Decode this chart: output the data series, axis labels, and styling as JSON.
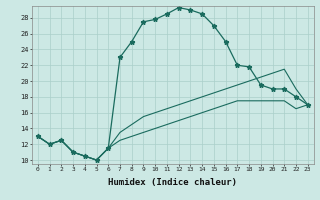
{
  "xlabel": "Humidex (Indice chaleur)",
  "bg_color": "#cce8e4",
  "line_color": "#1a6b5e",
  "grid_color": "#aacfca",
  "xlim": [
    -0.5,
    23.5
  ],
  "ylim": [
    9.5,
    29.5
  ],
  "xticks": [
    0,
    1,
    2,
    3,
    4,
    5,
    6,
    7,
    8,
    9,
    10,
    11,
    12,
    13,
    14,
    15,
    16,
    17,
    18,
    19,
    20,
    21,
    22,
    23
  ],
  "yticks": [
    10,
    12,
    14,
    16,
    18,
    20,
    22,
    24,
    26,
    28
  ],
  "line1_x": [
    0,
    1,
    2,
    3,
    4,
    5,
    6,
    7,
    8,
    9,
    10,
    11,
    12,
    13,
    14,
    15,
    16,
    17,
    18,
    19,
    20,
    21,
    22,
    23
  ],
  "line1_y": [
    13,
    12,
    12.5,
    11,
    10.5,
    10,
    11.5,
    23,
    25,
    27.5,
    27.8,
    28.5,
    29.3,
    29,
    28.5,
    27,
    25,
    22,
    21.8,
    19.5,
    19,
    19,
    18,
    17
  ],
  "line2_x": [
    0,
    1,
    2,
    3,
    4,
    5,
    6,
    7,
    8,
    9,
    10,
    11,
    12,
    13,
    14,
    15,
    16,
    17,
    18,
    19,
    20,
    21,
    22,
    23
  ],
  "line2_y": [
    13,
    12,
    12.5,
    11,
    10.5,
    10,
    11.5,
    13.5,
    14.5,
    15.5,
    16,
    16.5,
    17,
    17.5,
    18,
    18.5,
    19,
    19.5,
    20,
    20.5,
    21,
    21.5,
    19,
    17
  ],
  "line3_x": [
    0,
    1,
    2,
    3,
    4,
    5,
    6,
    7,
    8,
    9,
    10,
    11,
    12,
    13,
    14,
    15,
    16,
    17,
    18,
    19,
    20,
    21,
    22,
    23
  ],
  "line3_y": [
    13,
    12,
    12.5,
    11,
    10.5,
    10,
    11.5,
    12.5,
    13,
    13.5,
    14,
    14.5,
    15,
    15.5,
    16,
    16.5,
    17,
    17.5,
    17.5,
    17.5,
    17.5,
    17.5,
    16.5,
    17
  ]
}
